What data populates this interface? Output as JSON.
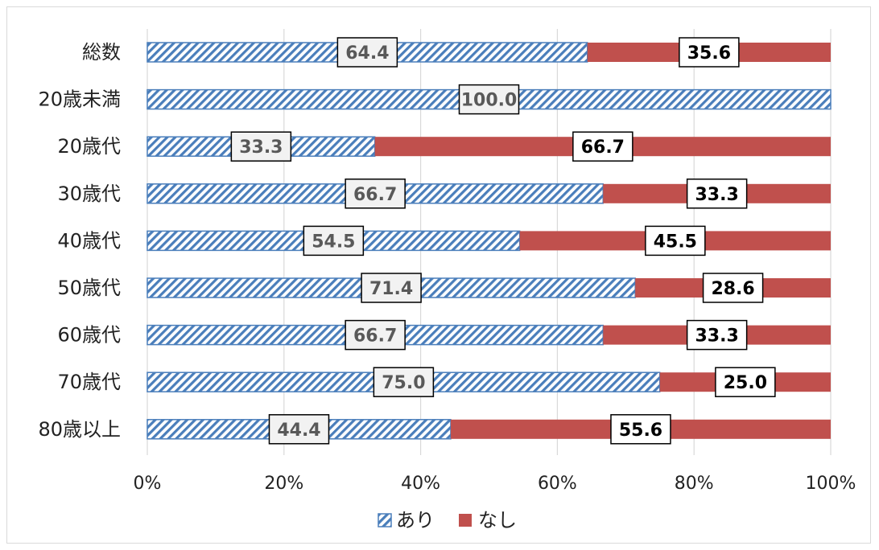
{
  "chart_data": {
    "type": "bar",
    "orientation": "horizontal",
    "stacked": "percent",
    "categories": [
      "総数",
      "20歳未満",
      "20歳代",
      "30歳代",
      "40歳代",
      "50歳代",
      "60歳代",
      "70歳代",
      "80歳以上"
    ],
    "series": [
      {
        "name": "あり",
        "values": [
          64.4,
          100.0,
          33.3,
          66.7,
          54.5,
          71.4,
          66.7,
          75.0,
          44.4
        ],
        "color": "#4a7ebb",
        "pattern": "diagonal-hatch"
      },
      {
        "name": "なし",
        "values": [
          35.6,
          0,
          66.7,
          33.3,
          45.5,
          28.6,
          33.3,
          25.0,
          55.6
        ],
        "color": "#c0504d",
        "pattern": "solid"
      }
    ],
    "data_labels": {
      "あり": [
        "64.4",
        "100.0",
        "33.3",
        "66.7",
        "54.5",
        "71.4",
        "66.7",
        "75.0",
        "44.4"
      ],
      "なし": [
        "35.6",
        "",
        "66.7",
        "33.3",
        "45.5",
        "28.6",
        "33.3",
        "25.0",
        "55.6"
      ]
    },
    "x_ticks": [
      "0%",
      "20%",
      "40%",
      "60%",
      "80%",
      "100%"
    ],
    "xlim": [
      0,
      100
    ],
    "grid": "vertical",
    "legend": "bottom",
    "title": "",
    "xlabel": "",
    "ylabel": ""
  }
}
